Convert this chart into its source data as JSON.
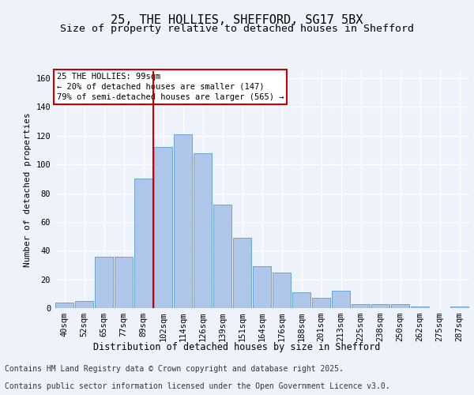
{
  "title": "25, THE HOLLIES, SHEFFORD, SG17 5BX",
  "subtitle": "Size of property relative to detached houses in Shefford",
  "xlabel": "Distribution of detached houses by size in Shefford",
  "ylabel": "Number of detached properties",
  "bar_labels": [
    "40sqm",
    "52sqm",
    "65sqm",
    "77sqm",
    "89sqm",
    "102sqm",
    "114sqm",
    "126sqm",
    "139sqm",
    "151sqm",
    "164sqm",
    "176sqm",
    "188sqm",
    "201sqm",
    "213sqm",
    "225sqm",
    "238sqm",
    "250sqm",
    "262sqm",
    "275sqm",
    "287sqm"
  ],
  "bar_values": [
    4,
    5,
    36,
    36,
    90,
    112,
    121,
    108,
    72,
    49,
    29,
    25,
    11,
    7,
    12,
    3,
    3,
    3,
    1,
    0,
    1
  ],
  "bar_color": "#aec6e8",
  "bar_edge_color": "#5b9bd5",
  "vline_x_index": 5,
  "vline_color": "#cc0000",
  "ylim": [
    0,
    165
  ],
  "yticks": [
    0,
    20,
    40,
    60,
    80,
    100,
    120,
    140,
    160
  ],
  "annotation_text": "25 THE HOLLIES: 99sqm\n← 20% of detached houses are smaller (147)\n79% of semi-detached houses are larger (565) →",
  "annotation_box_color": "#ffffff",
  "annotation_box_edge": "#cc0000",
  "footer_line1": "Contains HM Land Registry data © Crown copyright and database right 2025.",
  "footer_line2": "Contains public sector information licensed under the Open Government Licence v3.0.",
  "bg_color": "#eef2fb",
  "plot_bg_color": "#eef2fb",
  "grid_color": "#ffffff",
  "title_fontsize": 11,
  "subtitle_fontsize": 9.5,
  "axis_fontsize": 8,
  "tick_fontsize": 7.5,
  "footer_fontsize": 7
}
